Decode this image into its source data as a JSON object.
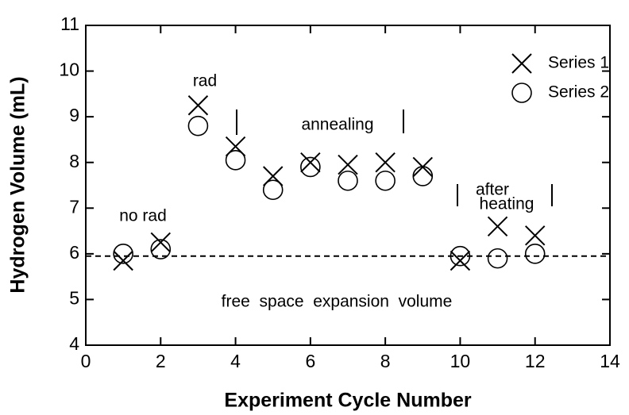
{
  "chart_data": {
    "type": "scatter",
    "x_label": "Experiment Cycle Number",
    "y_label": "Hydrogen Volume (mL)",
    "xlim": [
      0,
      14
    ],
    "xticks": [
      0,
      2,
      4,
      6,
      8,
      10,
      12,
      14
    ],
    "ylim": [
      4,
      11
    ],
    "yticks": [
      4,
      5,
      6,
      7,
      8,
      9,
      10,
      11
    ],
    "legend_position": "upper right",
    "series": [
      {
        "name": "Series 1",
        "marker": "x",
        "color": "#000000",
        "x": [
          1,
          2,
          3,
          4,
          5,
          6,
          7,
          8,
          9,
          10,
          11,
          12
        ],
        "values": [
          5.85,
          6.25,
          9.25,
          8.35,
          7.7,
          8.0,
          7.95,
          8.0,
          7.9,
          5.85,
          6.6,
          6.4
        ]
      },
      {
        "name": "Series 2",
        "marker": "o",
        "color": "#000000",
        "x": [
          1,
          2,
          3,
          4,
          5,
          6,
          7,
          8,
          9,
          10,
          11,
          12
        ],
        "values": [
          6.0,
          6.1,
          8.8,
          8.05,
          7.4,
          7.9,
          7.6,
          7.6,
          7.7,
          5.95,
          5.9,
          6.0
        ]
      }
    ],
    "reference_line": 5.95,
    "annotations": [
      "no rad",
      "rad",
      "annealing",
      "after",
      "heating",
      "free  space  expansion  volume"
    ]
  }
}
